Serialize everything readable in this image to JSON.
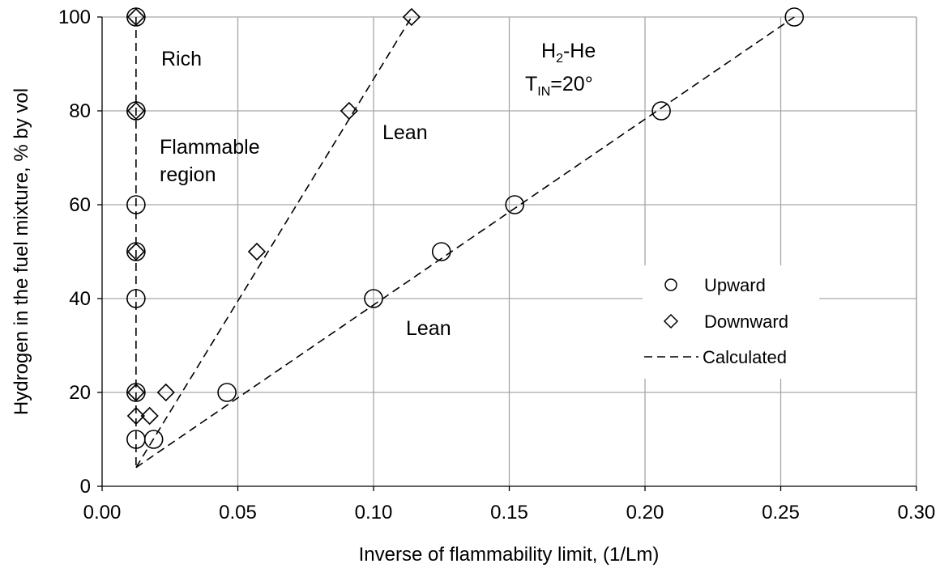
{
  "chart_data": {
    "type": "scatter",
    "xlabel": "Inverse of flammability limit, (1/Lm)",
    "ylabel": "Hydrogen in the fuel mixture, % by vol",
    "xlim": [
      0,
      0.3
    ],
    "ylim": [
      0,
      100
    ],
    "x_ticks": [
      "0.00",
      "0.05",
      "0.10",
      "0.15",
      "0.20",
      "0.25",
      "0.30"
    ],
    "y_ticks": [
      "0",
      "20",
      "40",
      "60",
      "80",
      "100"
    ],
    "grid": true,
    "legend_position": "center-right",
    "series": [
      {
        "name": "Upward",
        "marker": "circle",
        "points": [
          [
            0.0125,
            100
          ],
          [
            0.0125,
            80
          ],
          [
            0.0125,
            60
          ],
          [
            0.0125,
            50
          ],
          [
            0.0125,
            40
          ],
          [
            0.0125,
            20
          ],
          [
            0.0125,
            10
          ],
          [
            0.019,
            10
          ],
          [
            0.046,
            20
          ],
          [
            0.1,
            40
          ],
          [
            0.125,
            50
          ],
          [
            0.152,
            60
          ],
          [
            0.206,
            80
          ],
          [
            0.255,
            100
          ]
        ]
      },
      {
        "name": "Downward",
        "marker": "diamond",
        "points": [
          [
            0.0125,
            100
          ],
          [
            0.0125,
            80
          ],
          [
            0.0125,
            50
          ],
          [
            0.0125,
            20
          ],
          [
            0.0125,
            15
          ],
          [
            0.0175,
            15
          ],
          [
            0.0235,
            20
          ],
          [
            0.057,
            50
          ],
          [
            0.091,
            80
          ],
          [
            0.114,
            100
          ]
        ]
      },
      {
        "name": "Calculated",
        "style": "dashed",
        "lines": [
          [
            [
              0.0125,
              100
            ],
            [
              0.0125,
              4
            ]
          ],
          [
            [
              0.0125,
              4
            ],
            [
              0.114,
              100
            ]
          ],
          [
            [
              0.0125,
              4
            ],
            [
              0.255,
              100
            ]
          ]
        ]
      }
    ],
    "annotations": {
      "rich": "Rich",
      "flammable_1": "Flammable",
      "flammable_2": "region",
      "lean_upper": "Lean",
      "lean_lower": "Lean",
      "system_main": "H",
      "system_sub": "2",
      "system_rest": "-He",
      "temp_main": "T",
      "temp_sub": "IN",
      "temp_rest": "=20°"
    },
    "colors": {
      "grid": "#a6a6a6",
      "axis": "#000000",
      "marker": "#000000"
    }
  }
}
